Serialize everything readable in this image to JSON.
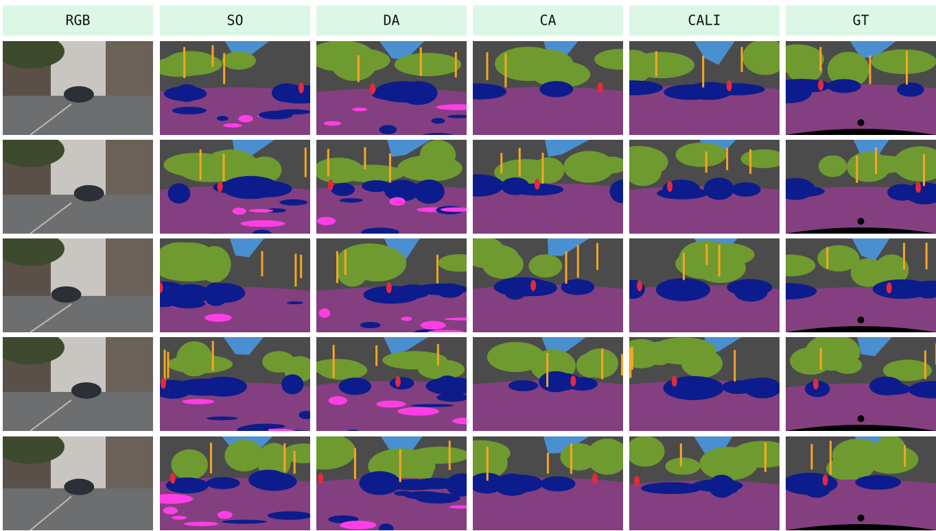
{
  "header": {
    "columns": [
      "RGB",
      "SO",
      "DA",
      "CA",
      "CALI",
      "GT"
    ]
  }
}
